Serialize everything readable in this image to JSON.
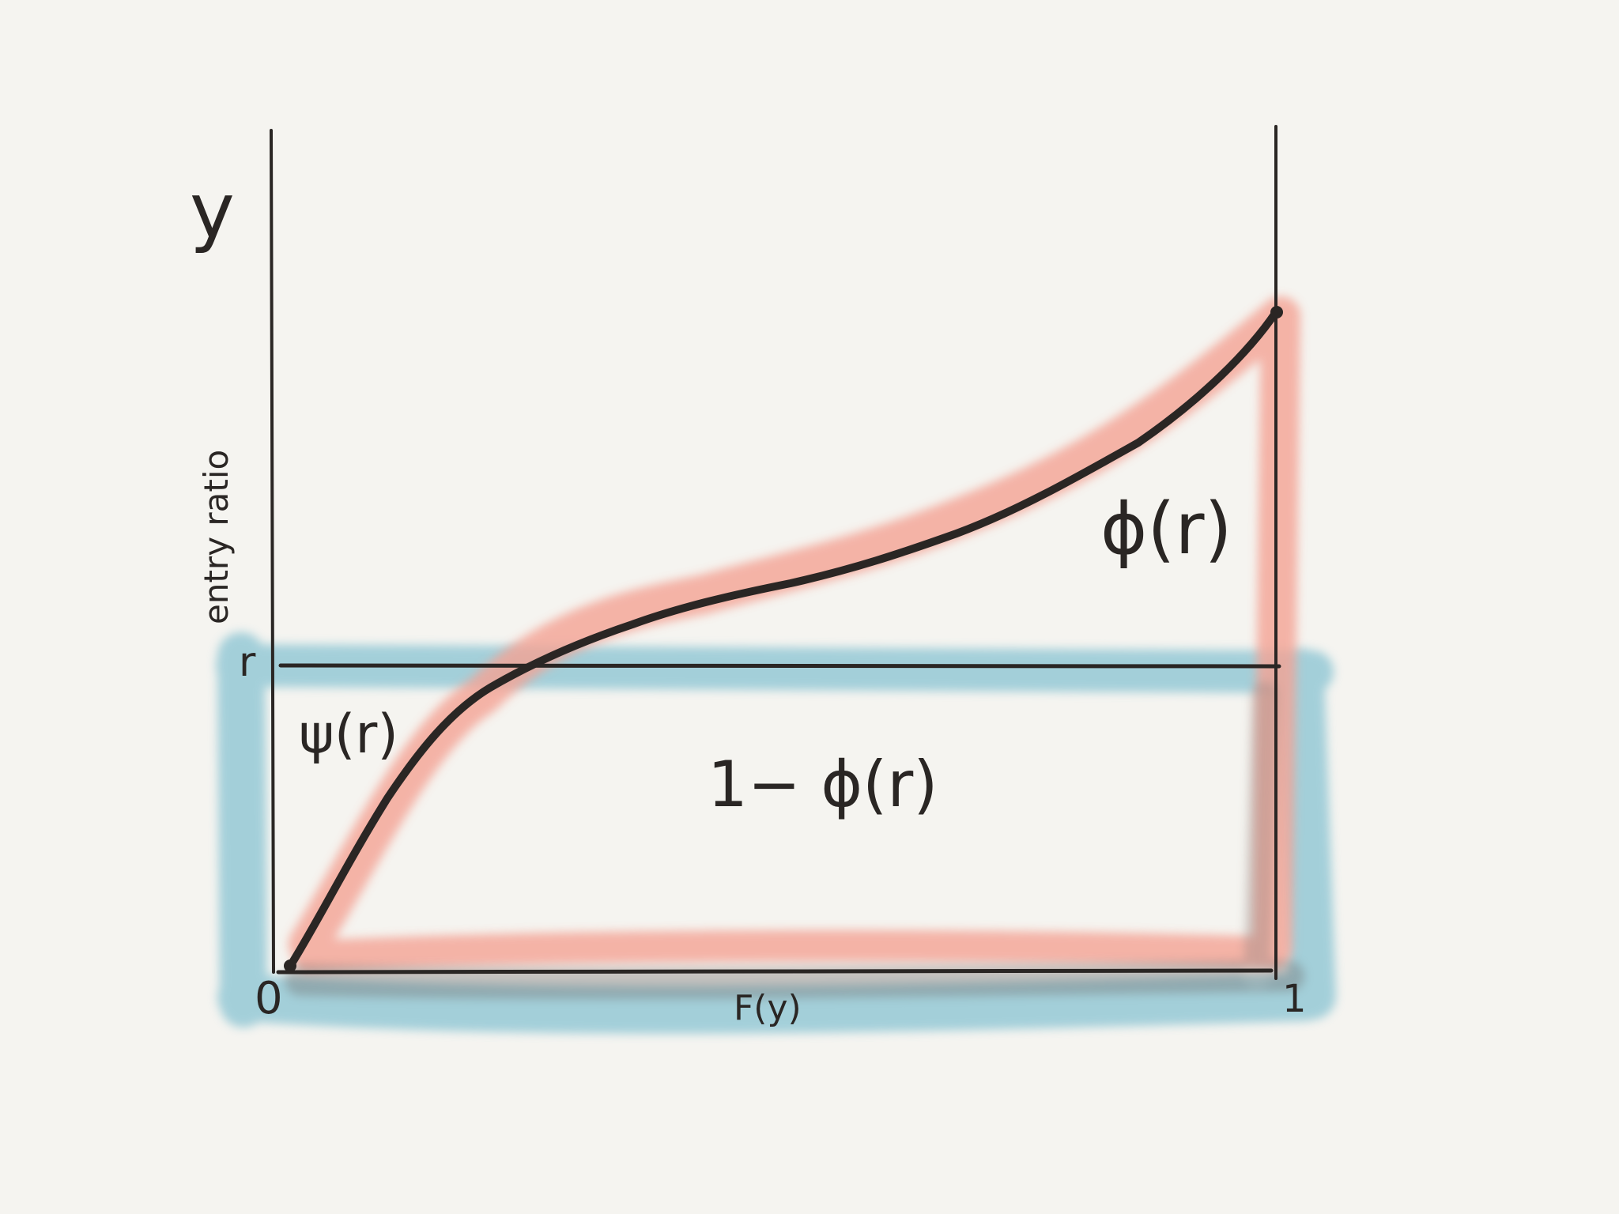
{
  "labels": {
    "y_axis_symbol": "y",
    "y_axis_title": "entry ratio",
    "r_tick": "r",
    "origin_tick": "0",
    "one_tick": "1",
    "x_axis_title": "F(y)",
    "psi_label": "ψ(r)",
    "phi_label": "ϕ(r)",
    "one_minus_phi_label": "1− ϕ(r)"
  },
  "colors": {
    "background": "#f5f4f0",
    "ink": "#2a2624",
    "red_highlight": "#f4a394",
    "blue_highlight": "#8fc6d4"
  }
}
